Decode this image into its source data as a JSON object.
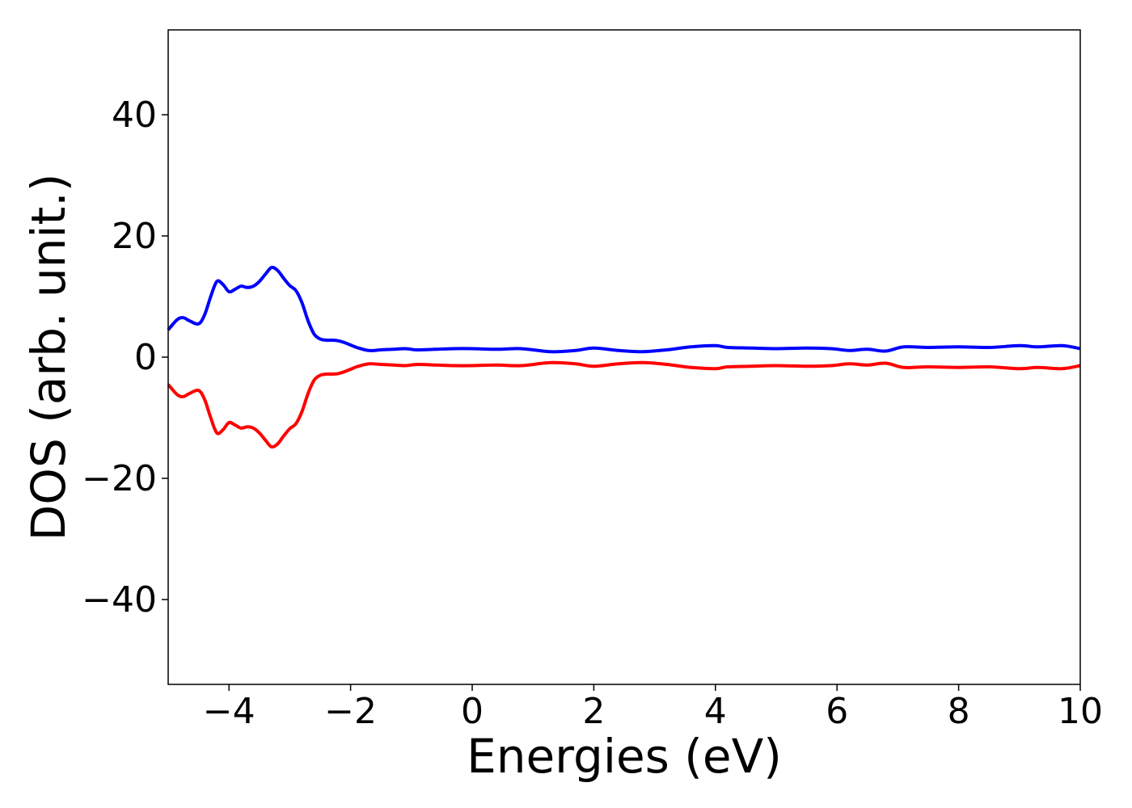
{
  "chart_data": {
    "type": "line",
    "title": "",
    "xlabel": "Energies (eV)",
    "ylabel": "DOS (arb. unit.)",
    "xlim": [
      -5,
      10
    ],
    "ylim": [
      -54,
      54
    ],
    "xticks": [
      -4,
      -2,
      0,
      2,
      4,
      6,
      8,
      10
    ],
    "xtick_labels": [
      "−4",
      "−2",
      "0",
      "2",
      "4",
      "6",
      "8",
      "10"
    ],
    "yticks": [
      40,
      20,
      0,
      -20,
      -40
    ],
    "ytick_labels": [
      "40",
      "20",
      "0",
      "−20",
      "−40"
    ],
    "grid": false,
    "legend": "none",
    "series": [
      {
        "color": "#0000ff",
        "x": [
          -5.0,
          -4.85,
          -4.75,
          -4.65,
          -4.5,
          -4.4,
          -4.3,
          -4.2,
          -4.1,
          -4.0,
          -3.9,
          -3.8,
          -3.7,
          -3.6,
          -3.5,
          -3.4,
          -3.3,
          -3.2,
          -3.1,
          -3.0,
          -2.9,
          -2.8,
          -2.7,
          -2.6,
          -2.5,
          -2.4,
          -2.3,
          -2.2,
          -2.1,
          -2.0,
          -1.9,
          -1.7,
          -1.5,
          -1.3,
          -1.1,
          -0.9,
          -0.6,
          -0.3,
          0.0,
          0.4,
          0.8,
          1.3,
          1.7,
          2.0,
          2.4,
          2.8,
          3.2,
          3.6,
          4.0,
          4.2,
          4.6,
          5.0,
          5.5,
          5.9,
          6.2,
          6.5,
          6.8,
          7.1,
          7.5,
          8.0,
          8.5,
          9.0,
          9.3,
          9.7,
          10.0
        ],
        "y": [
          4.5,
          6.2,
          6.5,
          6.0,
          5.5,
          7.0,
          10.0,
          12.5,
          12.0,
          10.8,
          11.2,
          11.7,
          11.5,
          11.7,
          12.5,
          13.7,
          14.8,
          14.3,
          13.0,
          11.8,
          11.0,
          9.0,
          6.0,
          3.8,
          3.0,
          2.8,
          2.8,
          2.7,
          2.4,
          2.0,
          1.6,
          1.1,
          1.2,
          1.3,
          1.4,
          1.2,
          1.3,
          1.4,
          1.4,
          1.3,
          1.4,
          0.9,
          1.1,
          1.5,
          1.1,
          0.9,
          1.2,
          1.7,
          1.9,
          1.6,
          1.5,
          1.4,
          1.5,
          1.4,
          1.1,
          1.3,
          1.0,
          1.7,
          1.6,
          1.7,
          1.6,
          1.9,
          1.7,
          1.9,
          1.4
        ]
      },
      {
        "color": "#ff0000",
        "x": [
          -5.0,
          -4.85,
          -4.75,
          -4.65,
          -4.5,
          -4.4,
          -4.3,
          -4.2,
          -4.1,
          -4.0,
          -3.9,
          -3.8,
          -3.7,
          -3.6,
          -3.5,
          -3.4,
          -3.3,
          -3.2,
          -3.1,
          -3.0,
          -2.9,
          -2.8,
          -2.7,
          -2.6,
          -2.5,
          -2.4,
          -2.3,
          -2.2,
          -2.1,
          -2.0,
          -1.9,
          -1.7,
          -1.5,
          -1.3,
          -1.1,
          -0.9,
          -0.6,
          -0.3,
          0.0,
          0.4,
          0.8,
          1.3,
          1.7,
          2.0,
          2.4,
          2.8,
          3.2,
          3.6,
          4.0,
          4.2,
          4.6,
          5.0,
          5.5,
          5.9,
          6.2,
          6.5,
          6.8,
          7.1,
          7.5,
          8.0,
          8.5,
          9.0,
          9.3,
          9.7,
          10.0
        ],
        "y": [
          -4.5,
          -6.2,
          -6.5,
          -6.0,
          -5.5,
          -7.0,
          -10.0,
          -12.5,
          -12.0,
          -10.8,
          -11.2,
          -11.7,
          -11.5,
          -11.7,
          -12.5,
          -13.7,
          -14.8,
          -14.3,
          -13.0,
          -11.8,
          -11.0,
          -9.0,
          -6.0,
          -3.8,
          -3.0,
          -2.8,
          -2.8,
          -2.7,
          -2.4,
          -2.0,
          -1.6,
          -1.1,
          -1.2,
          -1.3,
          -1.4,
          -1.2,
          -1.3,
          -1.4,
          -1.4,
          -1.3,
          -1.4,
          -0.9,
          -1.1,
          -1.5,
          -1.1,
          -0.9,
          -1.2,
          -1.7,
          -1.9,
          -1.6,
          -1.5,
          -1.4,
          -1.5,
          -1.4,
          -1.1,
          -1.3,
          -1.0,
          -1.7,
          -1.6,
          -1.7,
          -1.6,
          -1.9,
          -1.7,
          -1.9,
          -1.4
        ]
      }
    ]
  }
}
